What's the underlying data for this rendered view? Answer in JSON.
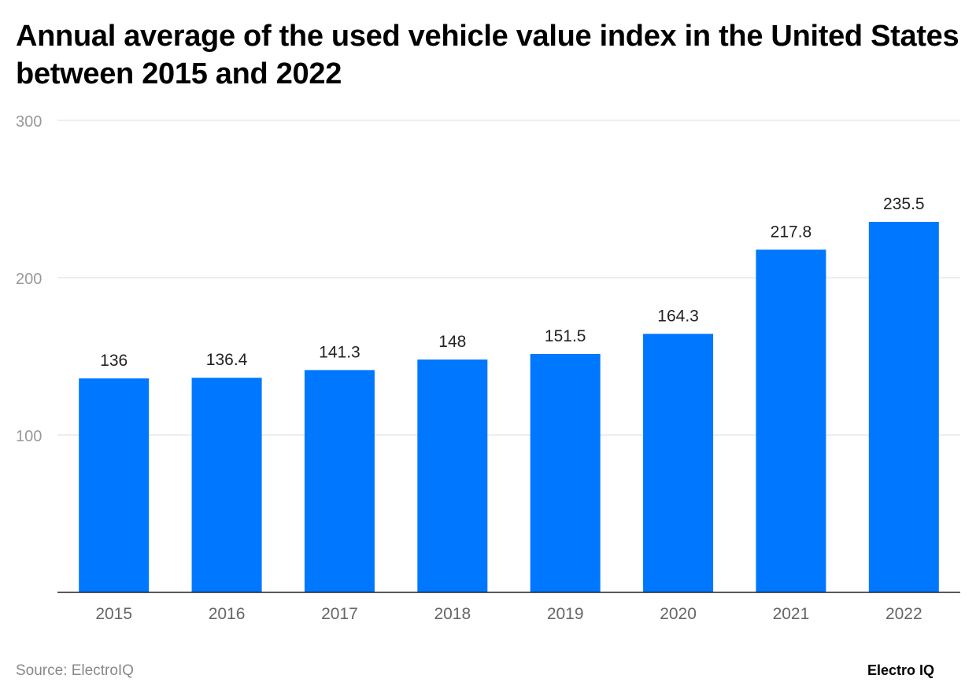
{
  "chart_data": {
    "type": "bar",
    "title": "Annual average of the used vehicle value index in the United States between 2015 and 2022",
    "categories": [
      "2015",
      "2016",
      "2017",
      "2018",
      "2019",
      "2020",
      "2021",
      "2022"
    ],
    "values": [
      136,
      136.4,
      141.3,
      148,
      151.5,
      164.3,
      217.8,
      235.5
    ],
    "xlabel": "",
    "ylabel": "",
    "ylim": [
      0,
      300
    ],
    "yticks": [
      100,
      200,
      300
    ],
    "grid": true,
    "bar_color": "#0077ff"
  },
  "source": "Source: ElectroIQ",
  "logo": "Electro IQ"
}
